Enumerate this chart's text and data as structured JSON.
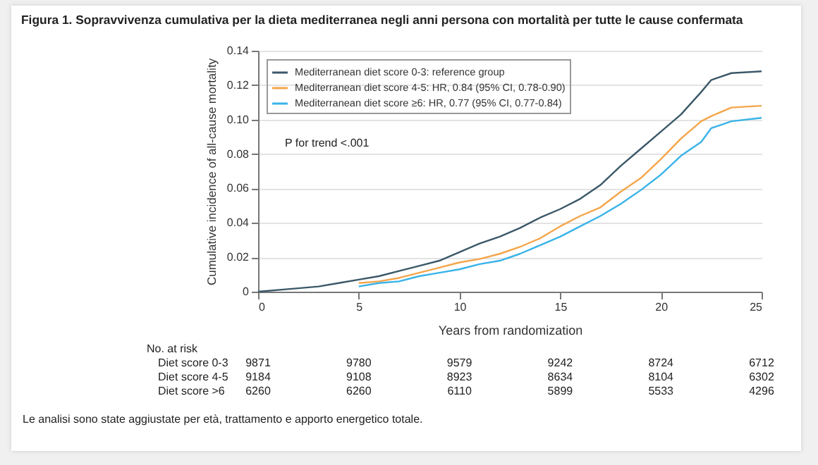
{
  "chart_data": {
    "type": "line",
    "title": "Figura 1. Sopravvivenza cumulativa per la dieta mediterranea negli anni persona con mortalità per tutte le cause confermata",
    "xlabel": "Years from randomization",
    "ylabel": "Cumulative incidence of all-cause mortality",
    "xlim": [
      0,
      25
    ],
    "xticks": [
      0,
      5,
      10,
      15,
      20,
      25
    ],
    "ylim": [
      0,
      0.14
    ],
    "yticks": [
      0,
      {
        "value": 0.02,
        "label": "0.02"
      },
      {
        "value": 0.04,
        "label": "0.04"
      },
      {
        "value": 0.06,
        "label": "0.06"
      },
      {
        "value": 0.08,
        "label": "0.08"
      },
      {
        "value": 0.1,
        "label": "0.10"
      },
      {
        "value": 0.12,
        "label": "0.12"
      },
      {
        "value": 0.14,
        "label": "0.14"
      }
    ],
    "x": [
      5,
      6,
      7,
      8,
      9,
      10,
      11,
      12,
      13,
      14,
      15,
      16,
      17,
      18,
      19,
      20,
      21,
      22,
      22.5,
      23.5,
      25
    ],
    "series": [
      {
        "name": "Mediterranean diet score 0-3: reference group",
        "color": "#3b5868",
        "x": [
          0,
          2,
          3,
          4,
          5,
          6,
          7,
          8,
          9,
          10,
          11,
          12,
          13,
          14,
          15,
          16,
          17,
          18,
          19,
          20,
          21,
          22,
          22.5,
          23.5,
          25
        ],
        "values": [
          0,
          0.002,
          0.003,
          0.005,
          0.007,
          0.009,
          0.012,
          0.015,
          0.018,
          0.023,
          0.028,
          0.032,
          0.037,
          0.043,
          0.048,
          0.054,
          0.062,
          0.073,
          0.083,
          0.093,
          0.103,
          0.116,
          0.123,
          0.127,
          0.128
        ]
      },
      {
        "name": "Mediterranean diet score 4-5: HR, 0.84 (95% CI, 0.78-0.90)",
        "color": "#f5a54a",
        "values": [
          0.005,
          0.006,
          0.008,
          0.011,
          0.014,
          0.017,
          0.019,
          0.022,
          0.026,
          0.031,
          0.038,
          0.044,
          0.049,
          0.058,
          0.066,
          0.077,
          0.089,
          0.099,
          0.102,
          0.107,
          0.108
        ]
      },
      {
        "name": "Mediterranean diet score ≥6: HR, 0.77 (95% CI, 0.77-0.84)",
        "color": "#38b3e8",
        "values": [
          0.003,
          0.005,
          0.006,
          0.009,
          0.011,
          0.013,
          0.016,
          0.018,
          0.022,
          0.027,
          0.032,
          0.038,
          0.044,
          0.051,
          0.059,
          0.068,
          0.079,
          0.087,
          0.095,
          0.099,
          0.101
        ]
      }
    ],
    "grid": "y",
    "legend": "top left",
    "annotations": [
      "P for trend <.001",
      "No. at risk",
      "Diet score 0-3",
      "9871",
      "9780",
      "9579",
      "9242",
      "8724",
      "6712",
      "Diet score 4-5",
      "9184",
      "9108",
      "8923",
      "8634",
      "8104",
      "6302",
      "Diet score >6",
      "6260",
      "6260",
      "6110",
      "5899",
      "5533",
      "4296",
      "Le analisi sono state aggiustate per età, trattamento e apporto energetico totale."
    ]
  }
}
